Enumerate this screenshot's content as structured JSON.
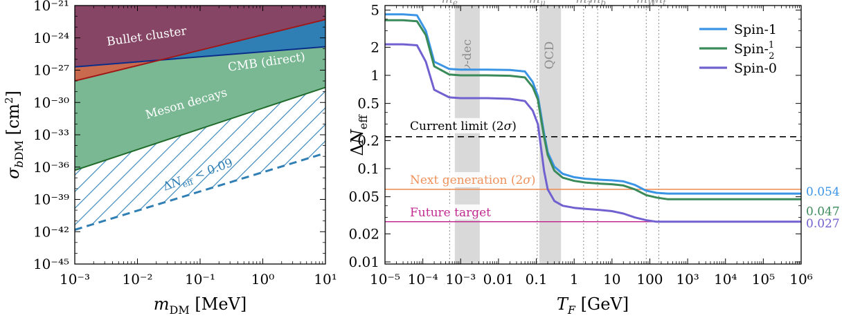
{
  "chart_data": [
    {
      "type": "area",
      "xlabel": "m_DM [MeV]",
      "ylabel": "σ_bDM [cm²]",
      "xscale": "log",
      "yscale": "log",
      "xlim": [
        0.001,
        10
      ],
      "ylim": [
        1e-45,
        1e-21
      ],
      "x_tick_labels": [
        "10⁻³",
        "10⁻²",
        "10⁻¹",
        "10⁰",
        "10¹"
      ],
      "y_tick_labels": [
        "10⁻⁴⁵",
        "10⁻⁴²",
        "10⁻³⁹",
        "10⁻³⁶",
        "10⁻³³",
        "10⁻³⁰",
        "10⁻²⁷",
        "10⁻²⁴",
        "10⁻²¹"
      ],
      "regions": [
        {
          "name": "Bullet cluster",
          "color": "#8b4260",
          "boundary": {
            "x": [
              0.001,
              10
            ],
            "y": [
              1e-28,
              5e-23
            ]
          }
        },
        {
          "name": "CMB (direct)",
          "color": "#2f7fb5",
          "boundary": {
            "x": [
              0.001,
              10
            ],
            "y": [
              2e-27,
              1.5e-25
            ]
          }
        },
        {
          "name": "Meson decays",
          "color": "#7ab894",
          "boundary": {
            "x": [
              0.001,
              10
            ],
            "y": [
              5e-37,
              2.5e-29
            ]
          }
        },
        {
          "name": "ΔN_eff < 0.09",
          "color": "#2f7fb5",
          "style": "hatched",
          "boundary": {
            "x": [
              0.001,
              10
            ],
            "y": [
              1.5e-42,
              2e-35
            ]
          }
        }
      ]
    },
    {
      "type": "line",
      "xlabel": "T_F [GeV]",
      "ylabel": "ΔN_eff",
      "xscale": "log",
      "yscale": "log",
      "xlim": [
        1e-05,
        1000000.0
      ],
      "ylim": [
        0.0095,
        5.6
      ],
      "x_tick_labels": [
        "10⁻⁵",
        "10⁻⁴",
        "10⁻³",
        "0.01",
        "0.1",
        "1",
        "10",
        "100",
        "10³",
        "10⁴",
        "10⁵",
        "10⁶"
      ],
      "y_tick_labels": [
        "0.01",
        "0.02",
        "0.05",
        "0.1",
        "0.2",
        "0.5",
        "1",
        "2",
        "5"
      ],
      "legend_position": "top-right",
      "series": [
        {
          "name": "Spin-1",
          "color": "#3a94e6",
          "x": [
            1e-05,
            3e-05,
            7e-05,
            0.00012,
            0.0002,
            0.0005,
            0.001,
            0.005,
            0.02,
            0.05,
            0.08,
            0.11,
            0.13,
            0.16,
            0.2,
            0.3,
            0.5,
            1,
            2,
            5,
            10,
            20,
            40,
            80,
            150,
            300,
            1000,
            10000,
            1000000
          ],
          "y": [
            4.5,
            4.5,
            4.4,
            3.0,
            1.4,
            1.17,
            1.15,
            1.15,
            1.14,
            1.1,
            0.85,
            0.6,
            0.4,
            0.24,
            0.15,
            0.105,
            0.088,
            0.081,
            0.078,
            0.076,
            0.075,
            0.073,
            0.067,
            0.058,
            0.055,
            0.054,
            0.054,
            0.054,
            0.054
          ]
        },
        {
          "name": "Spin-1/2",
          "color": "#3a8a5a",
          "x": [
            1e-05,
            3e-05,
            7e-05,
            0.00012,
            0.0002,
            0.0005,
            0.001,
            0.005,
            0.02,
            0.05,
            0.08,
            0.11,
            0.13,
            0.16,
            0.2,
            0.3,
            0.5,
            1,
            2,
            5,
            10,
            20,
            40,
            80,
            150,
            300,
            1000,
            10000,
            1000000
          ],
          "y": [
            3.9,
            3.9,
            3.8,
            2.7,
            1.25,
            1.02,
            1.0,
            1.0,
            0.99,
            0.95,
            0.75,
            0.55,
            0.36,
            0.22,
            0.14,
            0.095,
            0.08,
            0.074,
            0.071,
            0.069,
            0.068,
            0.066,
            0.06,
            0.052,
            0.049,
            0.047,
            0.047,
            0.047,
            0.047
          ]
        },
        {
          "name": "Spin-0",
          "color": "#7060d0",
          "x": [
            1e-05,
            3e-05,
            7e-05,
            0.00012,
            0.0002,
            0.0005,
            0.001,
            0.005,
            0.02,
            0.05,
            0.08,
            0.11,
            0.13,
            0.16,
            0.2,
            0.3,
            0.5,
            1,
            2,
            5,
            10,
            20,
            40,
            80,
            150,
            300,
            1000,
            10000,
            1000000
          ],
          "y": [
            2.15,
            2.15,
            2.1,
            1.4,
            0.7,
            0.58,
            0.57,
            0.57,
            0.56,
            0.53,
            0.42,
            0.3,
            0.18,
            0.095,
            0.06,
            0.045,
            0.04,
            0.038,
            0.037,
            0.036,
            0.035,
            0.033,
            0.03,
            0.028,
            0.027,
            0.027,
            0.027,
            0.027,
            0.027
          ]
        }
      ],
      "horizontal_lines": [
        {
          "label": "Current limit (2σ)",
          "y": 0.22,
          "color": "#000000",
          "style": "dashed"
        },
        {
          "label": "Next generation (2σ)",
          "y": 0.06,
          "color": "#f0905a",
          "style": "solid"
        },
        {
          "label": "Future target",
          "y": 0.027,
          "color": "#c02a8f",
          "style": "solid"
        }
      ],
      "shaded_bands": [
        {
          "label": "ν-dec",
          "x_range": [
            0.0007,
            0.0032
          ]
        },
        {
          "label": "QCD",
          "x_range": [
            0.12,
            0.45
          ]
        }
      ],
      "mass_markers": [
        {
          "label": "m_e",
          "x": 0.000511
        },
        {
          "label": "m_μ",
          "x": 0.1057
        },
        {
          "label": "m_τ",
          "x": 1.777
        },
        {
          "label": "m_b",
          "x": 4.18
        },
        {
          "label": "m_W",
          "x": 80.4
        },
        {
          "label": "m_t",
          "x": 173
        }
      ],
      "end_labels": [
        {
          "text": "0.054",
          "color": "#3a94e6"
        },
        {
          "text": "0.047",
          "color": "#3a8a5a"
        },
        {
          "text": "0.027",
          "color": "#7060d0"
        }
      ]
    }
  ]
}
